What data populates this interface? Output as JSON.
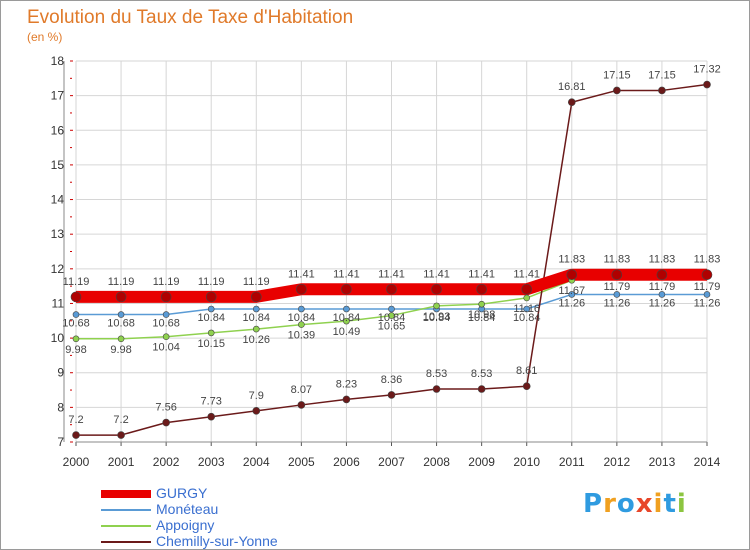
{
  "title": "Evolution du Taux de Taxe d'Habitation",
  "unit_label": "(en %)",
  "logo": {
    "letters": [
      "P",
      "r",
      "o",
      "x",
      "i",
      "t",
      "i"
    ],
    "colors": [
      "#2f9be0",
      "#f0a020",
      "#2f9be0",
      "#e8462a",
      "#f0a020",
      "#2f9be0",
      "#8cc540"
    ]
  },
  "chart_data": {
    "type": "line",
    "title": "Evolution du Taux de Taxe d'Habitation",
    "ylabel": "(en %)",
    "xlabel": "",
    "x": [
      "2000",
      "2001",
      "2002",
      "2003",
      "2004",
      "2005",
      "2006",
      "2007",
      "2008",
      "2009",
      "2010",
      "2011",
      "2012",
      "2013",
      "2014"
    ],
    "ylim": [
      7,
      18
    ],
    "yticks": [
      7,
      8,
      9,
      10,
      11,
      12,
      13,
      14,
      15,
      16,
      17,
      18
    ],
    "grid": true,
    "legend_position": "bottom-left",
    "series": [
      {
        "name": "GURGY",
        "color": "#e80000",
        "values": [
          11.19,
          11.19,
          11.19,
          11.19,
          11.19,
          11.41,
          11.41,
          11.41,
          11.41,
          11.41,
          11.41,
          11.83,
          11.83,
          11.83,
          11.83
        ],
        "labels": [
          "11.19",
          "11.19",
          "11.19",
          "11.19",
          "11.19",
          "11.41",
          "11.41",
          "11.41",
          "11.41",
          "11.41",
          "11.41",
          "11.83",
          "11.83",
          "11.83",
          "11.83"
        ]
      },
      {
        "name": "Monéteau",
        "color": "#5a9bd5",
        "values": [
          10.68,
          10.68,
          10.68,
          10.84,
          10.84,
          10.84,
          10.84,
          10.84,
          10.84,
          10.84,
          10.84,
          11.26,
          11.26,
          11.26,
          11.26
        ],
        "labels": [
          "10.68",
          "10.68",
          "10.68",
          "10.84",
          "10.84",
          "10.84",
          "10.84",
          "10.84",
          "10.84",
          "10.84",
          "10.84",
          "11.26",
          "11.26",
          "11.26",
          "11.26"
        ]
      },
      {
        "name": "Appoigny",
        "color": "#8fd14f",
        "values": [
          9.98,
          9.98,
          10.04,
          10.15,
          10.26,
          10.39,
          10.49,
          10.65,
          10.93,
          10.98,
          11.16,
          11.67,
          11.79,
          11.79,
          11.79
        ],
        "labels": [
          "9.98",
          "9.98",
          "10.04",
          "10.15",
          "10.26",
          "10.39",
          "10.49",
          "10.65",
          "10.93",
          "10.98",
          "11.16",
          "11.67",
          "11.79",
          "11.79",
          "11.79"
        ]
      },
      {
        "name": "Chemilly-sur-Yonne",
        "color": "#6b1a1a",
        "values": [
          7.2,
          7.2,
          7.56,
          7.73,
          7.9,
          8.07,
          8.23,
          8.36,
          8.53,
          8.53,
          8.61,
          16.81,
          17.15,
          17.15,
          17.32
        ],
        "labels": [
          "7.2",
          "7.2",
          "7.56",
          "7.73",
          "7.9",
          "8.07",
          "8.23",
          "8.36",
          "8.53",
          "8.53",
          "8.61",
          "16.81",
          "17.15",
          "17.15",
          "17.32"
        ]
      }
    ]
  }
}
